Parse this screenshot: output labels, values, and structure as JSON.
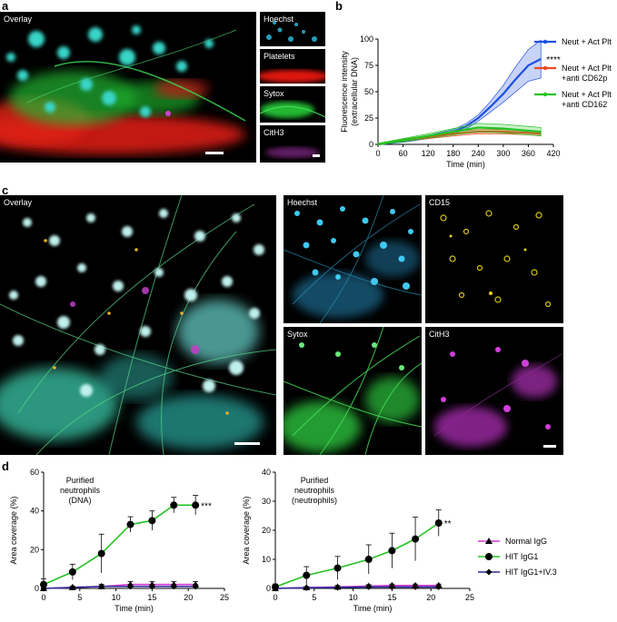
{
  "panels": {
    "a": {
      "letter": "a",
      "overlay_label": "Overlay",
      "channels": [
        "Hoechst",
        "Platelets",
        "Sytox",
        "CitH3"
      ],
      "channel_colors": [
        "#33c8e6",
        "#ff2a1a",
        "#2edc3a",
        "#c640c8"
      ]
    },
    "b": {
      "letter": "b"
    },
    "c": {
      "letter": "c",
      "overlay_label": "Overlay",
      "channels": [
        "Hoechst",
        "CD15",
        "Sytox",
        "CitH3"
      ],
      "channel_colors": [
        "#33c8e6",
        "#e6d21a",
        "#2edc3a",
        "#d040d8"
      ]
    },
    "d": {
      "letter": "d"
    }
  },
  "chart_data": [
    {
      "id": "b",
      "type": "line",
      "xlabel": "Time (min)",
      "ylabel": "Fluorescence intensity\n(extracellular DNA)",
      "xlim": [
        0,
        420
      ],
      "ylim": [
        0,
        100
      ],
      "xticks": [
        0,
        60,
        120,
        180,
        240,
        300,
        360,
        420
      ],
      "yticks": [
        0,
        25,
        50,
        75,
        100
      ],
      "legend_position": "right",
      "significance": "****",
      "series": [
        {
          "name": "Neut + Act Plt",
          "color": "#1f4fe0",
          "x": [
            0,
            60,
            120,
            180,
            210,
            240,
            270,
            300,
            330,
            360,
            390
          ],
          "y": [
            0,
            3,
            7,
            12,
            17,
            25,
            36,
            48,
            62,
            75,
            81
          ],
          "err": [
            1,
            1,
            1.5,
            2,
            2.5,
            3,
            5,
            8,
            12,
            15,
            18
          ]
        },
        {
          "name": "Neut + Act Plt\n+anti CD62p",
          "color": "#f04a20",
          "x": [
            0,
            60,
            120,
            180,
            240,
            300,
            360,
            390
          ],
          "y": [
            0,
            4,
            7,
            10,
            12,
            12,
            11,
            10
          ],
          "err": [
            1,
            1,
            1.5,
            2,
            2,
            2,
            2,
            2
          ]
        },
        {
          "name": "Neut + Act Plt\n+anti CD162",
          "color": "#22c322",
          "x": [
            0,
            60,
            120,
            180,
            240,
            300,
            360,
            390
          ],
          "y": [
            0,
            4,
            8,
            12,
            16,
            15,
            13,
            12
          ],
          "err": [
            1,
            1.5,
            2,
            3,
            4,
            4,
            4,
            4
          ]
        }
      ]
    },
    {
      "id": "d-left",
      "type": "line",
      "annotation": "Purified\nneutrophils\n(DNA)",
      "xlabel": "Time (min)",
      "ylabel": "Area coverage (%)",
      "xlim": [
        0,
        25
      ],
      "ylim": [
        0,
        60
      ],
      "xticks": [
        0,
        5,
        10,
        15,
        20,
        25
      ],
      "yticks": [
        0,
        20,
        40,
        60
      ],
      "significance": "***",
      "series": [
        {
          "name": "Normal IgG",
          "color": "#d23ad2",
          "marker": "triangle",
          "x": [
            0,
            4,
            8,
            12,
            15,
            18,
            21
          ],
          "y": [
            0,
            0.5,
            1,
            2,
            2,
            2,
            2
          ],
          "err": [
            0,
            0.5,
            1,
            1.5,
            1.5,
            1.5,
            1.5
          ]
        },
        {
          "name": "HIT IgG1",
          "color": "#22c322",
          "marker": "circle",
          "x": [
            0,
            4,
            8,
            12,
            15,
            18,
            21
          ],
          "y": [
            2,
            8.5,
            18,
            33,
            35,
            43,
            43
          ],
          "err": [
            3,
            4,
            10,
            4,
            5,
            4,
            5
          ]
        },
        {
          "name": "HIT IgG1+IV.3",
          "color": "#2a2a9a",
          "marker": "diamond",
          "x": [
            0,
            4,
            8,
            12,
            15,
            18,
            21
          ],
          "y": [
            0,
            0.5,
            1,
            1,
            1,
            1,
            1
          ],
          "err": [
            0,
            0.5,
            1,
            1,
            1,
            1,
            1
          ]
        }
      ]
    },
    {
      "id": "d-right",
      "type": "line",
      "annotation": "Purified\nneutrophils\n(neutrophils)",
      "xlabel": "Time (min)",
      "ylabel": "Area coverage (%)",
      "xlim": [
        0,
        25
      ],
      "ylim": [
        0,
        40
      ],
      "xticks": [
        0,
        5,
        10,
        15,
        20,
        25
      ],
      "yticks": [
        0,
        10,
        20,
        30,
        40
      ],
      "significance": "**",
      "legend_position": "right",
      "series": [
        {
          "name": "Normal IgG",
          "color": "#d23ad2",
          "marker": "triangle",
          "x": [
            0,
            4,
            8,
            12,
            15,
            18,
            21
          ],
          "y": [
            0,
            0.3,
            0.5,
            0.8,
            1,
            1,
            1
          ],
          "err": [
            0,
            0.3,
            0.5,
            0.5,
            0.5,
            0.5,
            0.5
          ]
        },
        {
          "name": "HIT IgG1",
          "color": "#22c322",
          "marker": "circle",
          "x": [
            0,
            4,
            8,
            12,
            15,
            18,
            21
          ],
          "y": [
            0.5,
            4.5,
            7,
            10,
            13,
            17,
            22.5
          ],
          "err": [
            1,
            3,
            4,
            5,
            6,
            7.5,
            4.5
          ]
        },
        {
          "name": "HIT IgG1+IV.3",
          "color": "#2a2a9a",
          "marker": "diamond",
          "x": [
            0,
            4,
            8,
            12,
            15,
            18,
            21
          ],
          "y": [
            0,
            0.2,
            0.3,
            0.5,
            0.5,
            0.5,
            0.5
          ],
          "err": [
            0,
            0.3,
            0.3,
            0.5,
            0.5,
            0.5,
            0.5
          ]
        }
      ]
    }
  ]
}
